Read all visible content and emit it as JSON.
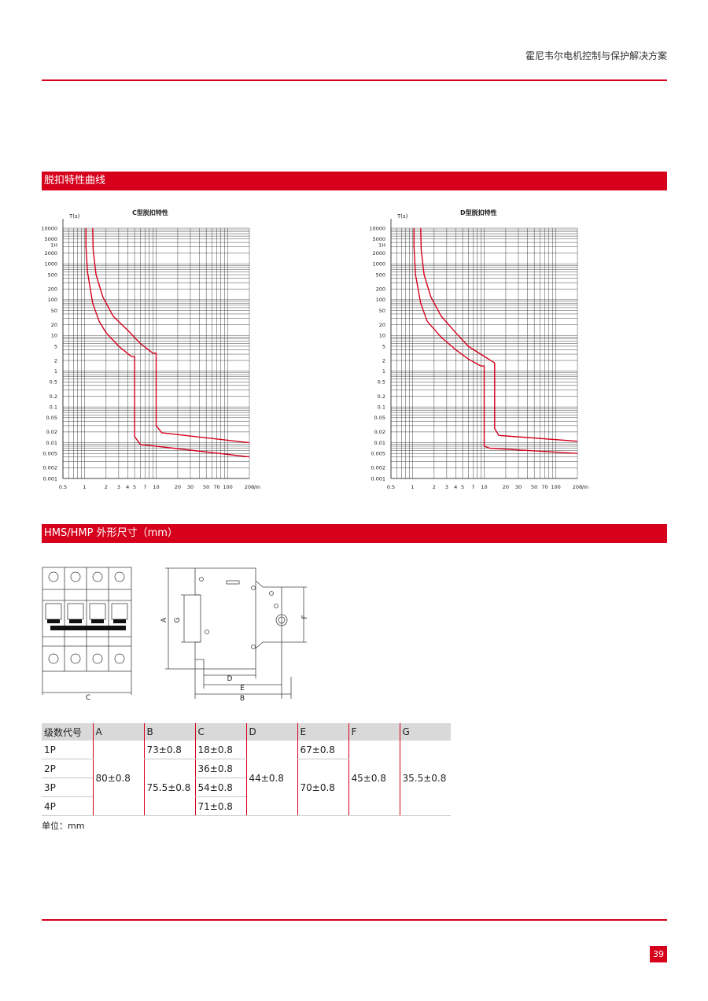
{
  "header": {
    "title": "霍尼韦尔电机控制与保护解决方案"
  },
  "sections": {
    "trip_curve": "脱扣特性曲线",
    "dimensions": "HMS/HMP 外形尺寸（mm）"
  },
  "colors": {
    "brand_red": "#d6001c",
    "table_header_gray": "#d9d9d9"
  },
  "chart_data": [
    {
      "type": "line",
      "title": "C型脱扣特性",
      "xlabel": "I/In",
      "ylabel": "T(s)",
      "x_scale": "log",
      "y_scale": "log",
      "xlim": [
        0.5,
        200
      ],
      "ylim": [
        0.001,
        10000
      ],
      "x_ticks": [
        {
          "v": 0.5,
          "label": "0.5"
        },
        {
          "v": 1,
          "label": "1"
        },
        {
          "v": 2,
          "label": "2"
        },
        {
          "v": 3,
          "label": "3"
        },
        {
          "v": 4,
          "label": "4"
        },
        {
          "v": 5,
          "label": "5"
        },
        {
          "v": 7,
          "label": "7"
        },
        {
          "v": 10,
          "label": "10"
        },
        {
          "v": 20,
          "label": "20"
        },
        {
          "v": 30,
          "label": "30"
        },
        {
          "v": 50,
          "label": "50"
        },
        {
          "v": 70,
          "label": "70"
        },
        {
          "v": 100,
          "label": "100"
        },
        {
          "v": 200,
          "label": "200"
        }
      ],
      "y_ticks": [
        {
          "v": 10000,
          "label": "10000"
        },
        {
          "v": 5000,
          "label": "5000"
        },
        {
          "v": 3600,
          "label": "1H"
        },
        {
          "v": 2000,
          "label": "2000"
        },
        {
          "v": 1000,
          "label": "1000"
        },
        {
          "v": 500,
          "label": "500"
        },
        {
          "v": 200,
          "label": "200"
        },
        {
          "v": 100,
          "label": "100"
        },
        {
          "v": 50,
          "label": "50"
        },
        {
          "v": 20,
          "label": "20"
        },
        {
          "v": 10,
          "label": "10"
        },
        {
          "v": 5,
          "label": "5"
        },
        {
          "v": 2,
          "label": "2"
        },
        {
          "v": 1,
          "label": "1"
        },
        {
          "v": 0.5,
          "label": "0.5"
        },
        {
          "v": 0.2,
          "label": "0.2"
        },
        {
          "v": 0.1,
          "label": "0.1"
        },
        {
          "v": 0.05,
          "label": "0.05"
        },
        {
          "v": 0.02,
          "label": "0.02"
        },
        {
          "v": 0.01,
          "label": "0.01"
        },
        {
          "v": 0.005,
          "label": "0.005"
        },
        {
          "v": 0.002,
          "label": "0.002"
        },
        {
          "v": 0.001,
          "label": "0.001"
        }
      ],
      "grid": true,
      "series": [
        {
          "x": [
            1.05,
            1.05,
            1.1,
            1.3,
            1.6,
            2,
            3,
            4.5,
            5,
            5,
            6,
            200
          ],
          "y": [
            10000,
            3000,
            600,
            80,
            25,
            12,
            5,
            2.6,
            2.6,
            0.015,
            0.009,
            0.004
          ]
        },
        {
          "x": [
            1.3,
            1.32,
            1.45,
            1.8,
            2.5,
            4,
            6,
            9,
            10,
            10,
            12,
            200
          ],
          "y": [
            10000,
            2500,
            500,
            120,
            35,
            14,
            6,
            3.2,
            3.2,
            0.03,
            0.019,
            0.01
          ]
        }
      ]
    },
    {
      "type": "line",
      "title": "D型脱扣特性",
      "xlabel": "I/In",
      "ylabel": "T(s)",
      "x_scale": "log",
      "y_scale": "log",
      "xlim": [
        0.5,
        200
      ],
      "ylim": [
        0.001,
        10000
      ],
      "x_ticks": [
        {
          "v": 0.5,
          "label": "0.5"
        },
        {
          "v": 1,
          "label": "1"
        },
        {
          "v": 2,
          "label": "2"
        },
        {
          "v": 3,
          "label": "3"
        },
        {
          "v": 4,
          "label": "4"
        },
        {
          "v": 5,
          "label": "5"
        },
        {
          "v": 7,
          "label": "7"
        },
        {
          "v": 10,
          "label": "10"
        },
        {
          "v": 20,
          "label": "20"
        },
        {
          "v": 30,
          "label": "30"
        },
        {
          "v": 50,
          "label": "50"
        },
        {
          "v": 70,
          "label": "70"
        },
        {
          "v": 100,
          "label": "100"
        },
        {
          "v": 200,
          "label": "200"
        }
      ],
      "y_ticks": [
        {
          "v": 10000,
          "label": "10000"
        },
        {
          "v": 5000,
          "label": "5000"
        },
        {
          "v": 3600,
          "label": "1H"
        },
        {
          "v": 2000,
          "label": "2000"
        },
        {
          "v": 1000,
          "label": "1000"
        },
        {
          "v": 500,
          "label": "500"
        },
        {
          "v": 200,
          "label": "200"
        },
        {
          "v": 100,
          "label": "100"
        },
        {
          "v": 50,
          "label": "50"
        },
        {
          "v": 20,
          "label": "20"
        },
        {
          "v": 10,
          "label": "10"
        },
        {
          "v": 5,
          "label": "5"
        },
        {
          "v": 2,
          "label": "2"
        },
        {
          "v": 1,
          "label": "1"
        },
        {
          "v": 0.5,
          "label": "0.5"
        },
        {
          "v": 0.2,
          "label": "0.2"
        },
        {
          "v": 0.1,
          "label": "0.1"
        },
        {
          "v": 0.05,
          "label": "0.05"
        },
        {
          "v": 0.02,
          "label": "0.02"
        },
        {
          "v": 0.01,
          "label": "0.01"
        },
        {
          "v": 0.005,
          "label": "0.005"
        },
        {
          "v": 0.002,
          "label": "0.002"
        },
        {
          "v": 0.001,
          "label": "0.001"
        }
      ],
      "grid": true,
      "series": [
        {
          "x": [
            1.05,
            1.05,
            1.1,
            1.3,
            1.6,
            2.5,
            4,
            6,
            9,
            10,
            10,
            12,
            200
          ],
          "y": [
            10000,
            3000,
            500,
            80,
            25,
            9,
            4,
            2.2,
            1.4,
            1.4,
            0.008,
            0.007,
            0.005
          ]
        },
        {
          "x": [
            1.3,
            1.32,
            1.45,
            1.8,
            2.5,
            4,
            6,
            10,
            14,
            14,
            16,
            200
          ],
          "y": [
            10000,
            2500,
            500,
            120,
            35,
            12,
            5,
            2.6,
            1.7,
            0.025,
            0.016,
            0.011
          ]
        }
      ]
    }
  ],
  "drawing": {
    "labels": {
      "A": "A",
      "B": "B",
      "C": "C",
      "D": "D",
      "E": "E",
      "F": "F",
      "G": "G"
    }
  },
  "table": {
    "headers": [
      "级数代号",
      "A",
      "B",
      "C",
      "D",
      "E",
      "F",
      "G"
    ],
    "poles": [
      "1P",
      "2P",
      "3P",
      "4P"
    ],
    "A": "80±0.8",
    "B": [
      "73±0.8",
      "75.5±0.8"
    ],
    "C": [
      "18±0.8",
      "36±0.8",
      "54±0.8",
      "71±0.8"
    ],
    "D": "44±0.8",
    "E": [
      "67±0.8",
      "70±0.8"
    ],
    "F": "45±0.8",
    "G": "35.5±0.8"
  },
  "unit_note": "单位：mm",
  "page_number": "39"
}
